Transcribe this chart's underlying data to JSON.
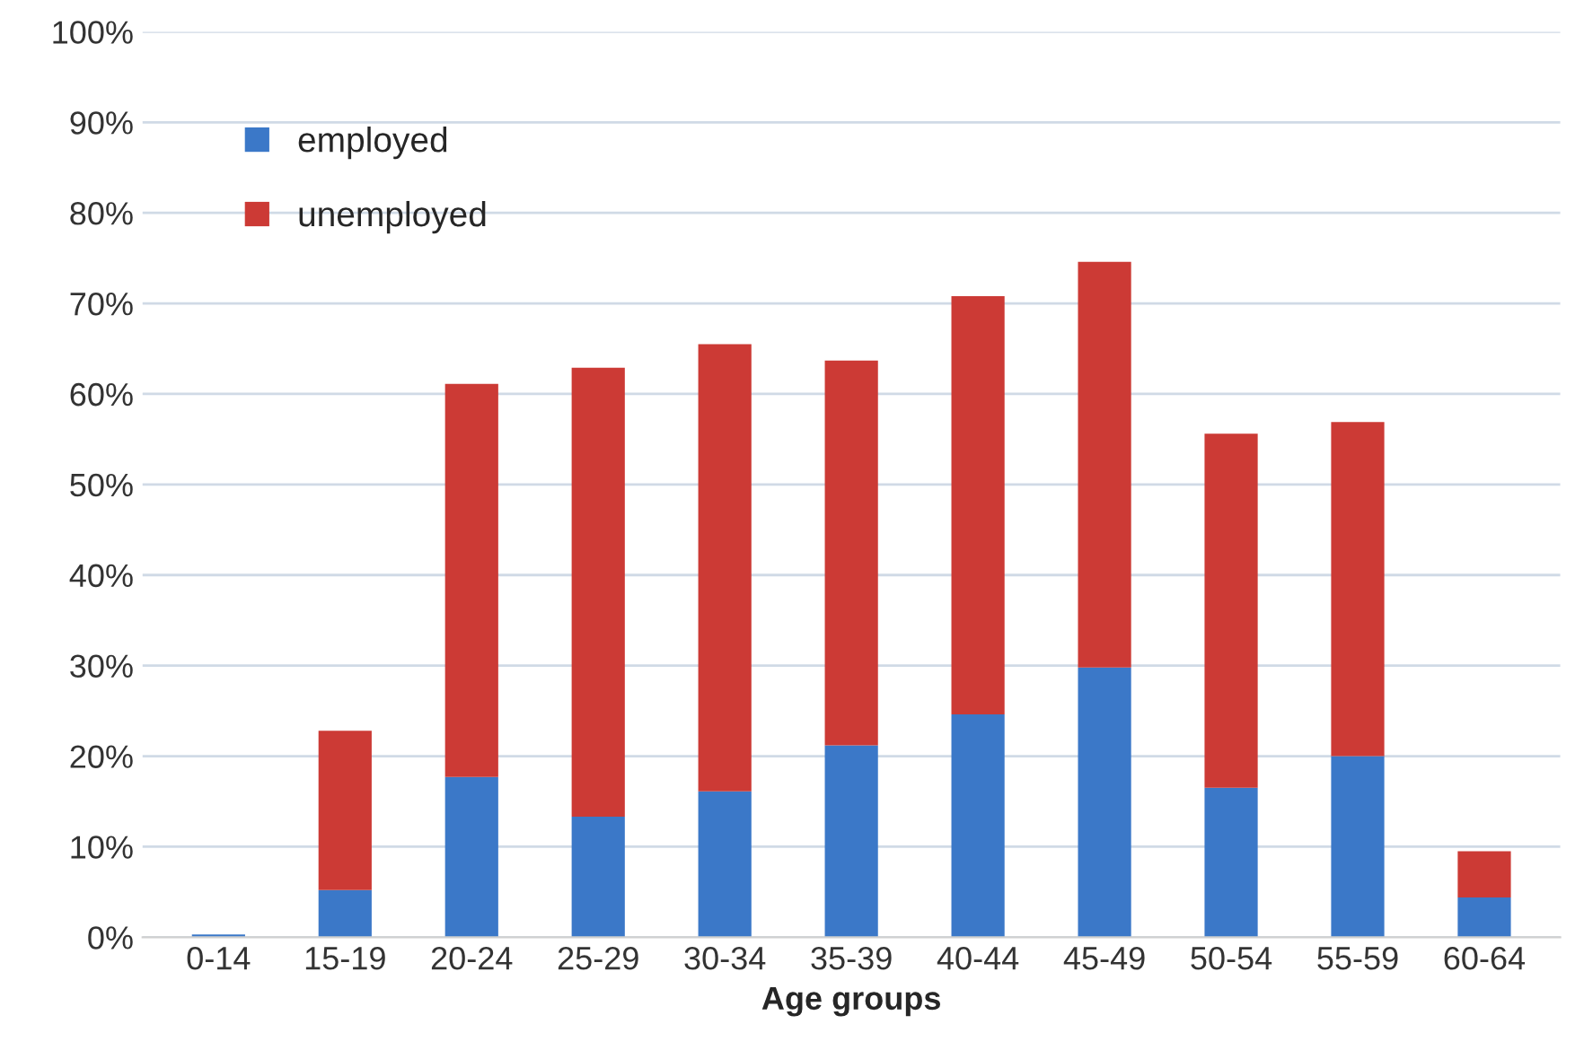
{
  "chart_data": {
    "type": "bar",
    "stacked": true,
    "xlabel": "Age groups",
    "categories": [
      "0-14",
      "15-19",
      "20-24",
      "25-29",
      "30-34",
      "35-39",
      "40-44",
      "45-49",
      "50-54",
      "55-59",
      "60-64"
    ],
    "series": [
      {
        "name": "employed",
        "color": "#3b78c8",
        "values": [
          0.3,
          5.2,
          17.7,
          13.3,
          16.1,
          21.2,
          24.6,
          29.8,
          16.5,
          20.0,
          4.4
        ]
      },
      {
        "name": "unemployed",
        "color": "#cc3a35",
        "values": [
          null,
          17.6,
          43.4,
          49.6,
          49.4,
          42.5,
          46.2,
          44.8,
          39.1,
          36.9,
          5.1
        ]
      }
    ],
    "ylim": [
      0,
      100
    ],
    "yticks": [
      {
        "value": 0,
        "label": "0%"
      },
      {
        "value": 10,
        "label": "10%"
      },
      {
        "value": 20,
        "label": "20%"
      },
      {
        "value": 30,
        "label": "30%"
      },
      {
        "value": 40,
        "label": "40%"
      },
      {
        "value": 50,
        "label": "50%"
      },
      {
        "value": 60,
        "label": "60%"
      },
      {
        "value": 70,
        "label": "70%"
      },
      {
        "value": 80,
        "label": "80%"
      },
      {
        "value": 90,
        "label": "90%"
      },
      {
        "value": 100,
        "label": "100%"
      }
    ],
    "grid": "y",
    "legend": "top left"
  }
}
